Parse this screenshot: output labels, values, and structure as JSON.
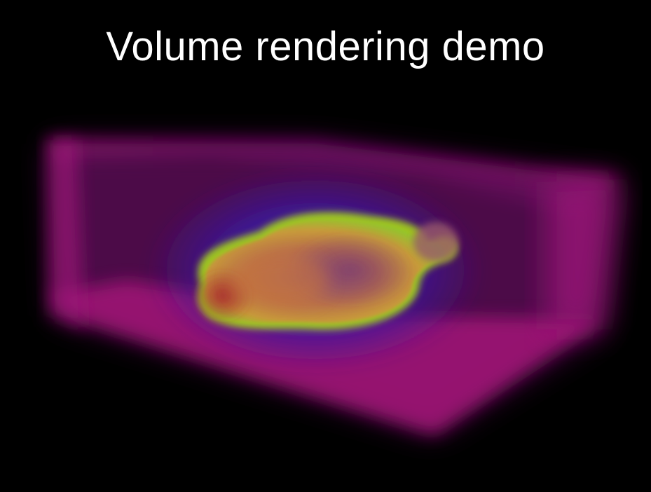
{
  "title": "Volume rendering demo",
  "colors": {
    "background": "#000000",
    "title_text": "#ffffff",
    "box_edge": "#c21a8a",
    "box_face_near": "#b0127a",
    "inner_blue": "#3a1aa8",
    "shell_green": "#a8e01a",
    "shell_yellow": "#f0d020",
    "core_orange": "#c87a3a",
    "core_red": "#b0382e"
  },
  "scene": {
    "description_icon": "volume-box-icon"
  }
}
